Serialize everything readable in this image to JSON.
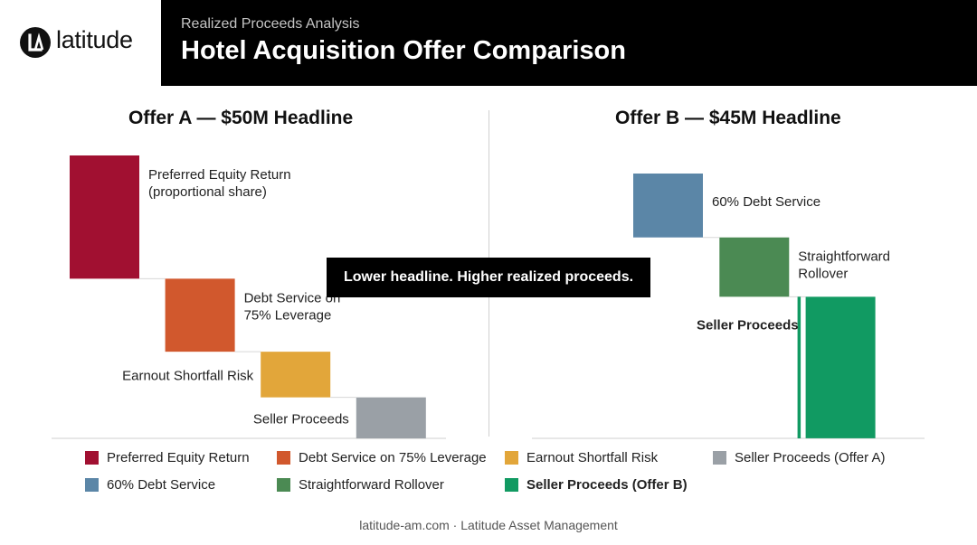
{
  "brand": {
    "name": "latitude"
  },
  "header": {
    "subtitle": "Realized Proceeds Analysis",
    "title": "Hotel Acquisition Offer Comparison"
  },
  "callout": "Lower headline. Higher realized proceeds.",
  "footer": "latitude-am.com · Latitude Asset Management",
  "chart_data": [
    {
      "type": "waterfall",
      "title": "Offer A — $50M Headline",
      "steps": [
        {
          "label_lines": [
            "Preferred Equity Return",
            "(proportional share)"
          ],
          "value": 13.5,
          "color": "#a11031"
        },
        {
          "label_lines": [
            "Debt Service on",
            "75% Leverage"
          ],
          "value": 8.0,
          "color": "#d1582d"
        },
        {
          "label_lines": [
            "Earnout Shortfall Risk"
          ],
          "value": 5.0,
          "color": "#e2a63a"
        },
        {
          "label_lines": [
            "Seller Proceeds"
          ],
          "value": 4.5,
          "color": "#9aa0a6"
        }
      ]
    },
    {
      "type": "waterfall",
      "title": "Offer B — $45M Headline",
      "steps": [
        {
          "label_lines": [
            "60% Debt Service"
          ],
          "value": 7.0,
          "color": "#5b86a7"
        },
        {
          "label_lines": [
            "Straightforward",
            "Rollover"
          ],
          "value": 6.5,
          "color": "#4b8a53"
        },
        {
          "label_lines": [
            "Seller Proceeds"
          ],
          "value": 15.5,
          "color": "#119a62",
          "highlight": true
        }
      ]
    }
  ],
  "legend": [
    {
      "label": "Preferred Equity Return",
      "color": "#a11031"
    },
    {
      "label": "Debt Service on 75% Leverage",
      "color": "#d1582d"
    },
    {
      "label": "Earnout Shortfall Risk",
      "color": "#e2a63a"
    },
    {
      "label": "Seller Proceeds (Offer A)",
      "color": "#9aa0a6"
    },
    {
      "label": "60% Debt Service",
      "color": "#5b86a7"
    },
    {
      "label": "Straightforward Rollover",
      "color": "#4b8a53"
    },
    {
      "label": "Seller Proceeds (Offer B)",
      "color": "#119a62",
      "bold": true
    }
  ]
}
